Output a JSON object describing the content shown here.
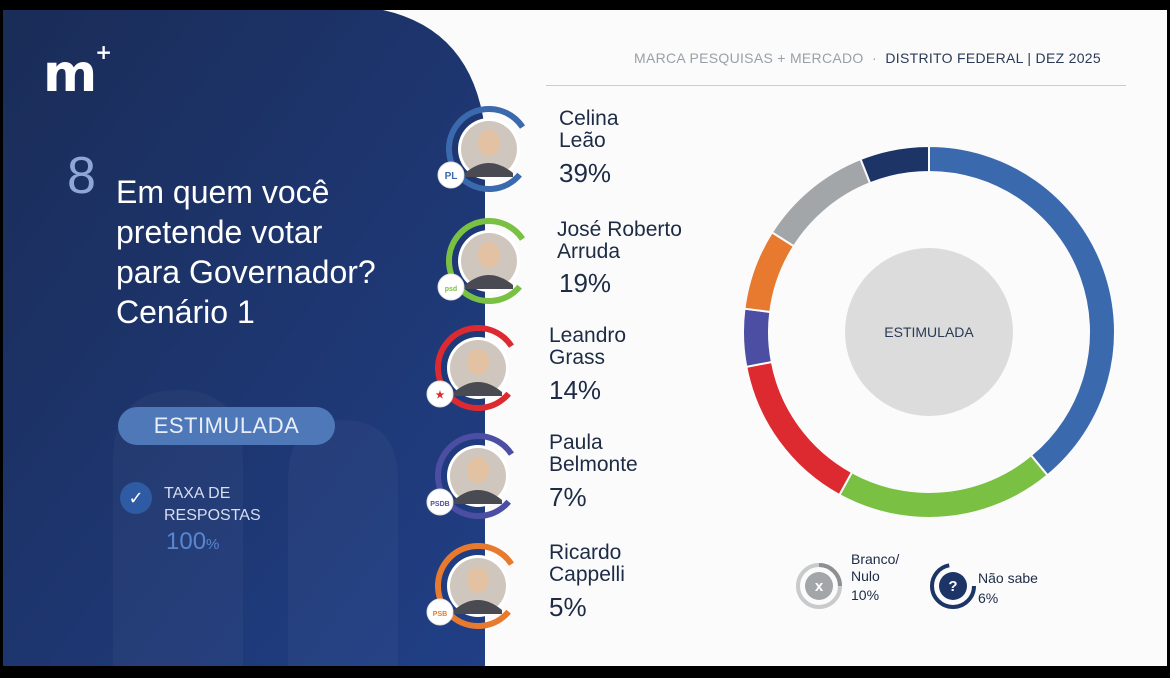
{
  "header": {
    "source": "MARCA PESQUISAS + MERCADO",
    "separator": "·",
    "region": "DISTRITO FEDERAL",
    "date_sep": "|",
    "date": "DEZ 2025"
  },
  "logo": {
    "text": "m",
    "plus": "+"
  },
  "question": {
    "number": "8",
    "text": "Em quem você\npretende votar\npara Governador?\nCenário 1"
  },
  "badge": "ESTIMULADA",
  "response_rate": {
    "label": "TAXA DE\nRESPOSTAS",
    "value": "100",
    "unit": "%"
  },
  "candidates": [
    {
      "name": "Celina\nLeão",
      "pct": "39%",
      "party": "PL",
      "color": "#3a6aad"
    },
    {
      "name": "José Roberto\nArruda",
      "pct": "19%",
      "party": "psd",
      "color": "#7ac043"
    },
    {
      "name": "Leandro\nGrass",
      "pct": "14%",
      "party": "★",
      "color": "#dd2a30"
    },
    {
      "name": "Paula\nBelmonte",
      "pct": "7%",
      "party": "PSDB",
      "color": "#4c4ea3"
    },
    {
      "name": "Ricardo\nCappelli",
      "pct": "5%",
      "party": "PSB",
      "color": "#e77a2e"
    }
  ],
  "legend": {
    "blank": {
      "label": "Branco/\nNulo",
      "pct": "10%",
      "icon": "x-icon",
      "color": "#a3a6a8"
    },
    "unknown": {
      "label": "Não sabe",
      "pct": "6%",
      "icon": "question-icon",
      "color": "#1d3566"
    }
  },
  "chart_data": {
    "type": "pie",
    "center_label": "ESTIMULADA",
    "categories": [
      "Celina Leão",
      "José Roberto Arruda",
      "Leandro Grass",
      "Paula Belmonte",
      "Ricardo Cappelli",
      "Branco/Nulo",
      "Não sabe"
    ],
    "values": [
      39,
      19,
      14,
      7,
      5,
      10,
      6
    ],
    "colors": [
      "#3a6aad",
      "#7ac043",
      "#dd2a30",
      "#e77a2e",
      "#4c4ea3",
      "#a3a6a8",
      "#1d3566"
    ],
    "order_clockwise_from_top": [
      "Celina Leão",
      "José Roberto Arruda",
      "Leandro Grass",
      "Ricardo Cappelli",
      "Paula Belmonte",
      "Branco/Nulo",
      "Não sabe"
    ]
  }
}
